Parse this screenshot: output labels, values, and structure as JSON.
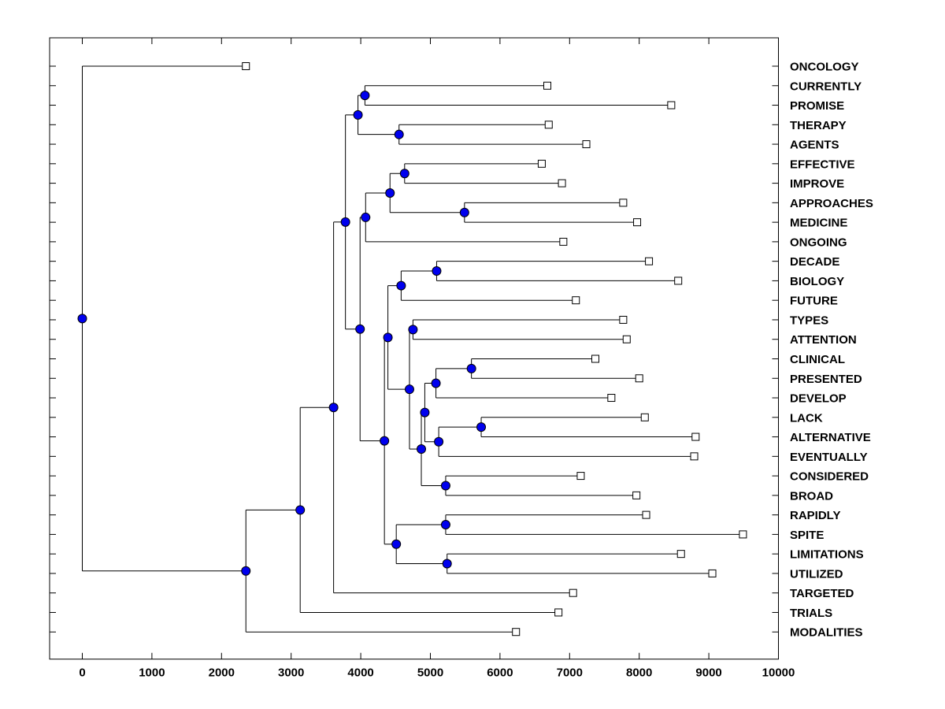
{
  "figure": {
    "title": "",
    "background": "#ffffff"
  },
  "chart_data": {
    "type": "dendrogram",
    "orientation": "horizontal-right-labels",
    "title": "",
    "xlabel": "",
    "ylabel": "",
    "grid": false,
    "x_axis": {
      "min": 0,
      "max": 10000,
      "tick_step": 1000,
      "tick_labels": [
        "0",
        "1000",
        "2000",
        "3000",
        "4000",
        "5000",
        "6000",
        "7000",
        "8000",
        "9000",
        "10000"
      ]
    },
    "leaves": [
      {
        "label": "ONCOLOGY",
        "value": 2350
      },
      {
        "label": "CURRENTLY",
        "value": 6680
      },
      {
        "label": "PROMISE",
        "value": 8460
      },
      {
        "label": "THERAPY",
        "value": 6700
      },
      {
        "label": "AGENTS",
        "value": 7240
      },
      {
        "label": "EFFECTIVE",
        "value": 6600
      },
      {
        "label": "IMPROVE",
        "value": 6890
      },
      {
        "label": "APPROACHES",
        "value": 7770
      },
      {
        "label": "MEDICINE",
        "value": 7970
      },
      {
        "label": "ONGOING",
        "value": 6910
      },
      {
        "label": "DECADE",
        "value": 8140
      },
      {
        "label": "BIOLOGY",
        "value": 8560
      },
      {
        "label": "FUTURE",
        "value": 7090
      },
      {
        "label": "TYPES",
        "value": 7770
      },
      {
        "label": "ATTENTION",
        "value": 7820
      },
      {
        "label": "CLINICAL",
        "value": 7370
      },
      {
        "label": "PRESENTED",
        "value": 8000
      },
      {
        "label": "DEVELOP",
        "value": 7600
      },
      {
        "label": "LACK",
        "value": 8080
      },
      {
        "label": "ALTERNATIVE",
        "value": 8810
      },
      {
        "label": "EVENTUALLY",
        "value": 8790
      },
      {
        "label": "CONSIDERED",
        "value": 7160
      },
      {
        "label": "BROAD",
        "value": 7960
      },
      {
        "label": "RAPIDLY",
        "value": 8100
      },
      {
        "label": "SPITE",
        "value": 9490
      },
      {
        "label": "LIMITATIONS",
        "value": 8600
      },
      {
        "label": "UTILIZED",
        "value": 9050
      },
      {
        "label": "TARGETED",
        "value": 7050
      },
      {
        "label": "TRIALS",
        "value": 6840
      },
      {
        "label": "MODALITIES",
        "value": 6230
      }
    ],
    "internal_nodes": [
      {
        "id": "n1",
        "children": [
          "CURRENTLY",
          "PROMISE"
        ],
        "value": 4060
      },
      {
        "id": "n2",
        "children": [
          "THERAPY",
          "AGENTS"
        ],
        "value": 4550
      },
      {
        "id": "n3",
        "children": [
          "n1",
          "n2"
        ],
        "value": 3960
      },
      {
        "id": "n4",
        "children": [
          "EFFECTIVE",
          "IMPROVE"
        ],
        "value": 4630
      },
      {
        "id": "n5",
        "children": [
          "APPROACHES",
          "MEDICINE"
        ],
        "value": 5490
      },
      {
        "id": "n6",
        "children": [
          "n4",
          "n5"
        ],
        "value": 4420
      },
      {
        "id": "n7",
        "children": [
          "n6",
          "ONGOING"
        ],
        "value": 4070
      },
      {
        "id": "n8",
        "children": [
          "DECADE",
          "BIOLOGY"
        ],
        "value": 5090
      },
      {
        "id": "n9",
        "children": [
          "n8",
          "FUTURE"
        ],
        "value": 4580
      },
      {
        "id": "n10",
        "children": [
          "TYPES",
          "ATTENTION"
        ],
        "value": 4750
      },
      {
        "id": "n11",
        "children": [
          "CLINICAL",
          "PRESENTED"
        ],
        "value": 5590
      },
      {
        "id": "n12",
        "children": [
          "n11",
          "DEVELOP"
        ],
        "value": 5080
      },
      {
        "id": "n13",
        "children": [
          "LACK",
          "ALTERNATIVE"
        ],
        "value": 5730
      },
      {
        "id": "n14",
        "children": [
          "n13",
          "EVENTUALLY"
        ],
        "value": 5120
      },
      {
        "id": "n15",
        "children": [
          "n12",
          "n14"
        ],
        "value": 4920
      },
      {
        "id": "n16",
        "children": [
          "CONSIDERED",
          "BROAD"
        ],
        "value": 5220
      },
      {
        "id": "n17",
        "children": [
          "n15",
          "n16"
        ],
        "value": 4870
      },
      {
        "id": "n18",
        "children": [
          "n10",
          "n17"
        ],
        "value": 4700
      },
      {
        "id": "n19",
        "children": [
          "n9",
          "n18"
        ],
        "value": 4390
      },
      {
        "id": "n20",
        "children": [
          "RAPIDLY",
          "SPITE"
        ],
        "value": 5220
      },
      {
        "id": "n21",
        "children": [
          "LIMITATIONS",
          "UTILIZED"
        ],
        "value": 5240
      },
      {
        "id": "n22",
        "children": [
          "n20",
          "n21"
        ],
        "value": 4510
      },
      {
        "id": "n23",
        "children": [
          "n19",
          "n22"
        ],
        "value": 4340
      },
      {
        "id": "n24",
        "children": [
          "n7",
          "n23"
        ],
        "value": 3990
      },
      {
        "id": "n25",
        "children": [
          "n3",
          "n24"
        ],
        "value": 3780
      },
      {
        "id": "n26",
        "children": [
          "n25",
          "TARGETED"
        ],
        "value": 3610
      },
      {
        "id": "n27",
        "children": [
          "n26",
          "TRIALS"
        ],
        "value": 3130
      },
      {
        "id": "n28",
        "children": [
          "n27",
          "MODALITIES"
        ],
        "value": 2350
      },
      {
        "id": "n29",
        "children": [
          "ONCOLOGY",
          "n28"
        ],
        "value": 0
      }
    ],
    "root_id": "n29",
    "styles": {
      "line_color": "#000000",
      "internal_node_fill": "#0000EE",
      "internal_node_stroke": "#000000",
      "leaf_marker_fill": "#FFFFFF",
      "leaf_marker_stroke": "#000000",
      "axis_color": "#000000",
      "label_color": "#000000"
    }
  }
}
